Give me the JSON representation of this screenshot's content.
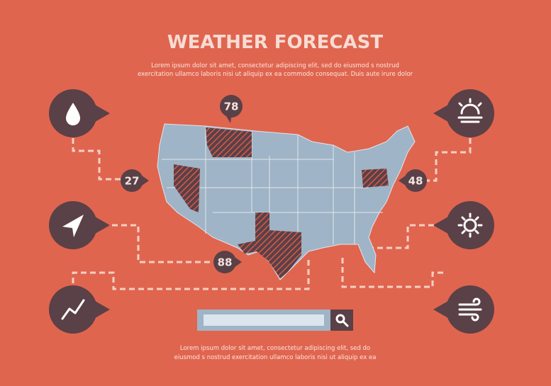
{
  "header": {
    "title": "WEATHER FORECAST",
    "text_lines": [
      "Lorem ipsum dolor sit amet, consectetur adipiscing elit, sed do eiusmod s nostrud",
      "exercitation ullamco laboris nisi ut aliquip ex ea commodo consequat. Duis aute irure dolor"
    ]
  },
  "markers": [
    {
      "label": 78
    },
    {
      "label": 27
    },
    {
      "label": 48
    },
    {
      "label": 88
    }
  ],
  "footer": {
    "text_lines": [
      "Lorem ipsum dolor sit amet, consectetur adipiscing elit, sed do",
      "eiusmod s nostrud exercitation ullamco laboris nisi ut aliquip ex ea"
    ]
  }
}
